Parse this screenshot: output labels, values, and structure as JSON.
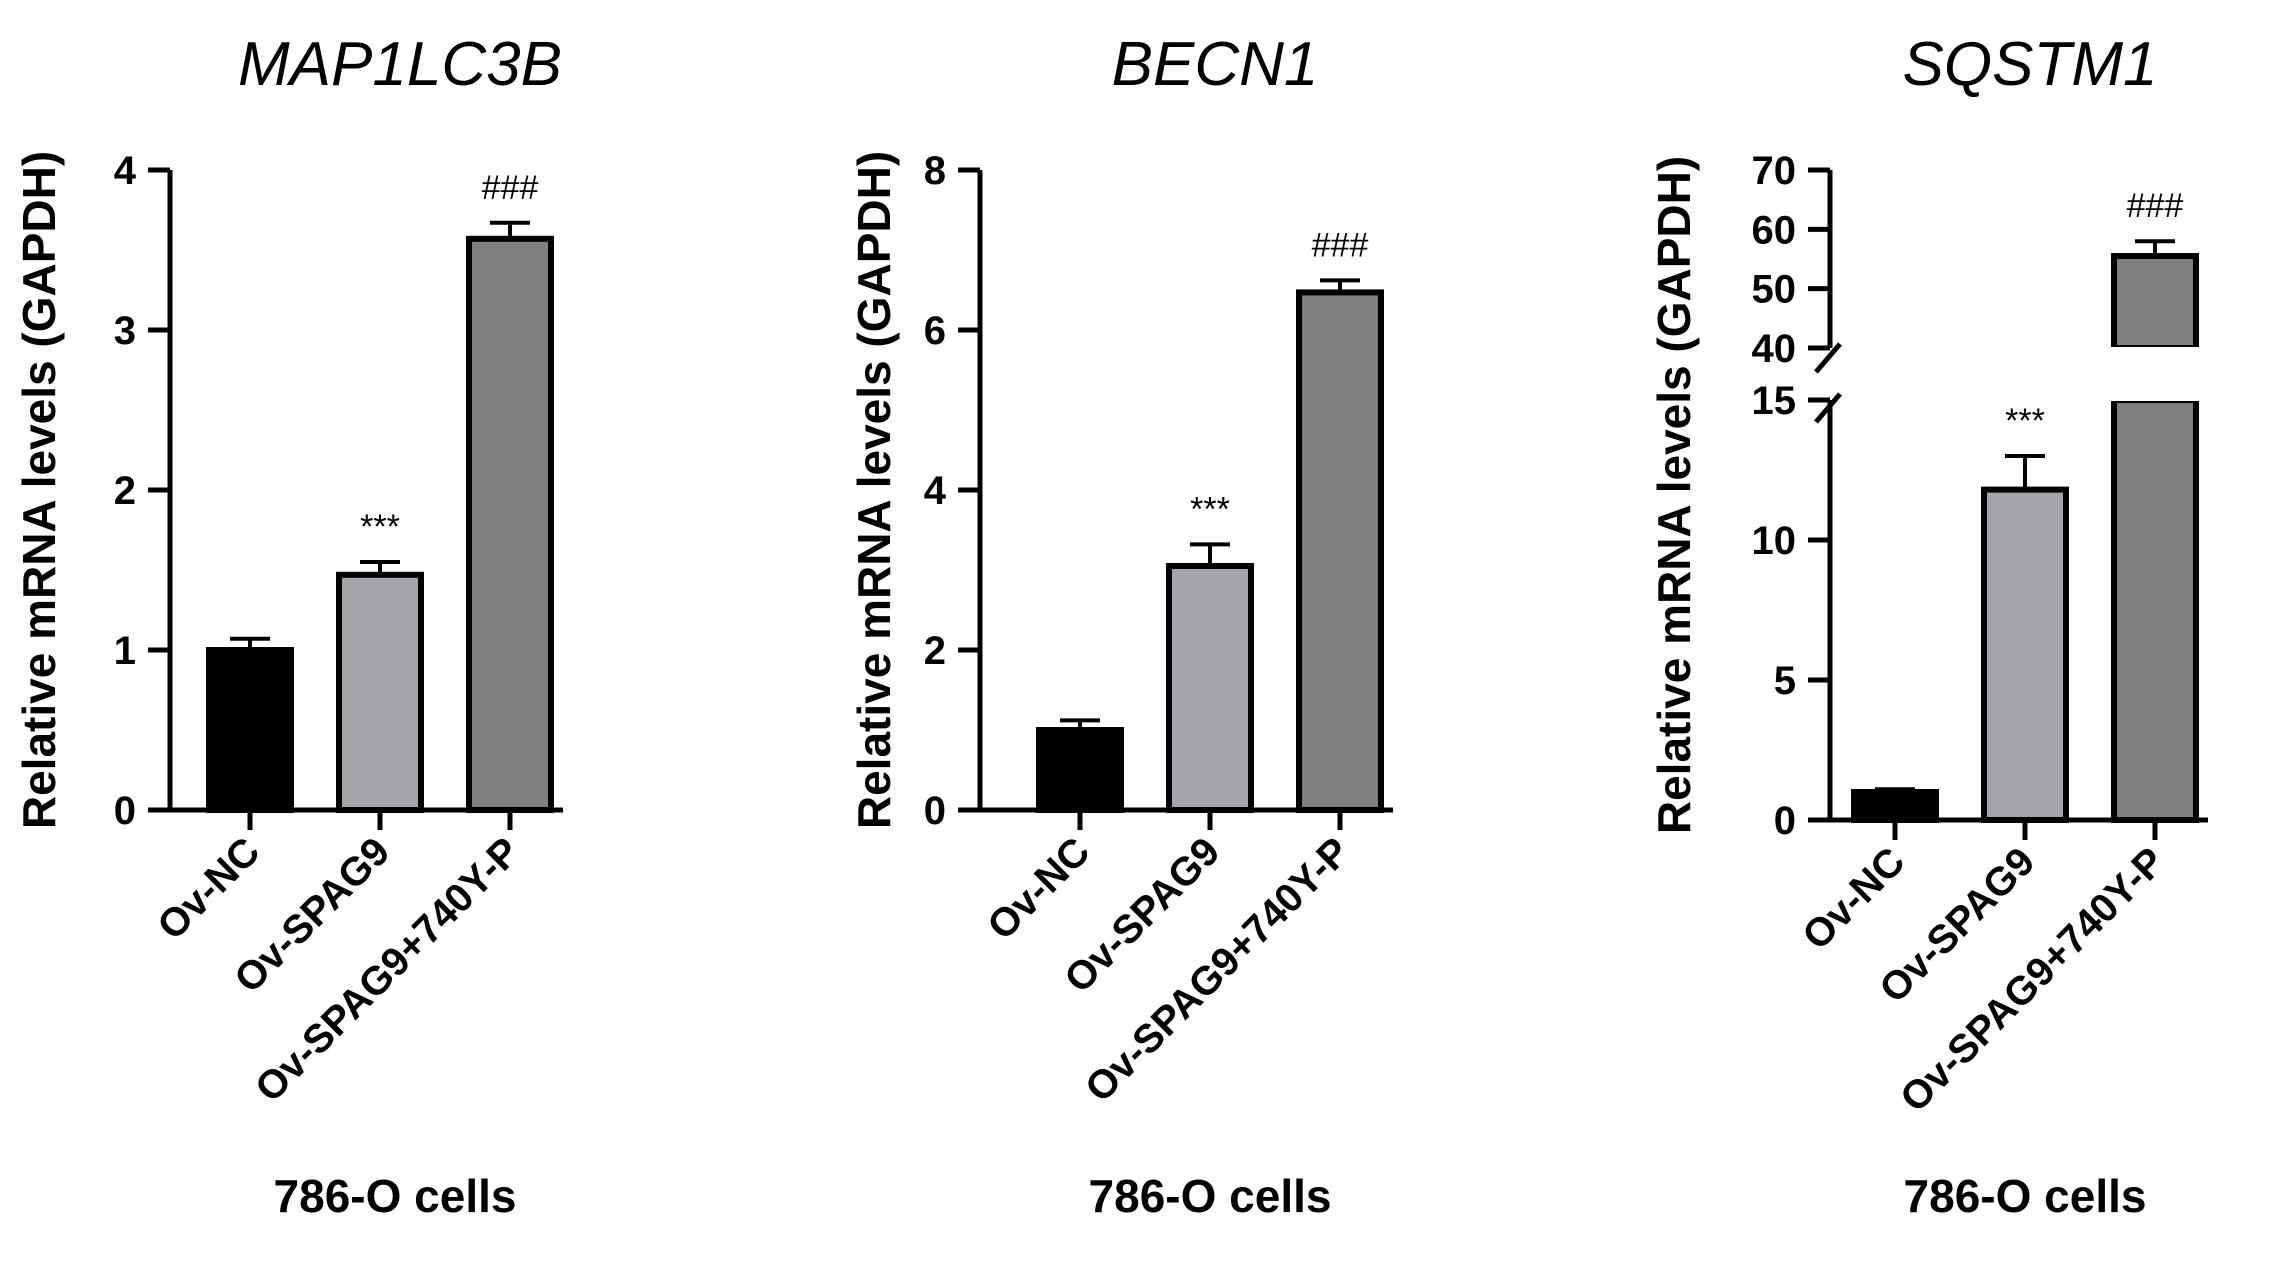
{
  "chart_data": [
    {
      "type": "bar",
      "title": "MAP1LC3B",
      "ylabel": "Relative mRNA levels (GAPDH)",
      "xlabel": "786-O cells",
      "categories": [
        "Ov-NC",
        "Ov-SPAG9",
        "Ov-SPAG9+740Y-P"
      ],
      "values": [
        1.0,
        1.47,
        3.57
      ],
      "errors": [
        0.07,
        0.08,
        0.1
      ],
      "annotations": [
        "",
        "***",
        "###"
      ],
      "colors": [
        "#000000",
        "#a3a3a8",
        "#7f7f7f"
      ],
      "ylim": [
        0,
        4
      ],
      "yticks": [
        "0",
        "1",
        "2",
        "3",
        "4"
      ]
    },
    {
      "type": "bar",
      "title": "BECN1",
      "ylabel": "Relative mRNA levels (GAPDH)",
      "xlabel": "786-O cells",
      "categories": [
        "Ov-NC",
        "Ov-SPAG9",
        "Ov-SPAG9+740Y-P"
      ],
      "values": [
        1.0,
        3.05,
        6.47
      ],
      "errors": [
        0.12,
        0.27,
        0.15
      ],
      "annotations": [
        "",
        "***",
        "###"
      ],
      "colors": [
        "#000000",
        "#a3a3a8",
        "#7f7f7f"
      ],
      "ylim": [
        0,
        8
      ],
      "yticks": [
        "0",
        "2",
        "4",
        "6",
        "8"
      ]
    },
    {
      "type": "bar",
      "title": "SQSTM1",
      "ylabel": "Relative mRNA levels (GAPDH)",
      "xlabel": "786-O cells",
      "categories": [
        "Ov-NC",
        "Ov-SPAG9",
        "Ov-SPAG9+740Y-P"
      ],
      "values": [
        1.0,
        11.8,
        55.5
      ],
      "errors": [
        0.1,
        1.2,
        2.5
      ],
      "annotations": [
        "",
        "***",
        "###"
      ],
      "colors": [
        "#000000",
        "#a3a3a8",
        "#7f7f7f"
      ],
      "axis_break": {
        "lower": [
          0,
          15
        ],
        "upper": [
          40,
          70
        ]
      },
      "yticks_lower": [
        "0",
        "5",
        "10",
        "15"
      ],
      "yticks_upper": [
        "40",
        "50",
        "60",
        "70"
      ]
    }
  ]
}
